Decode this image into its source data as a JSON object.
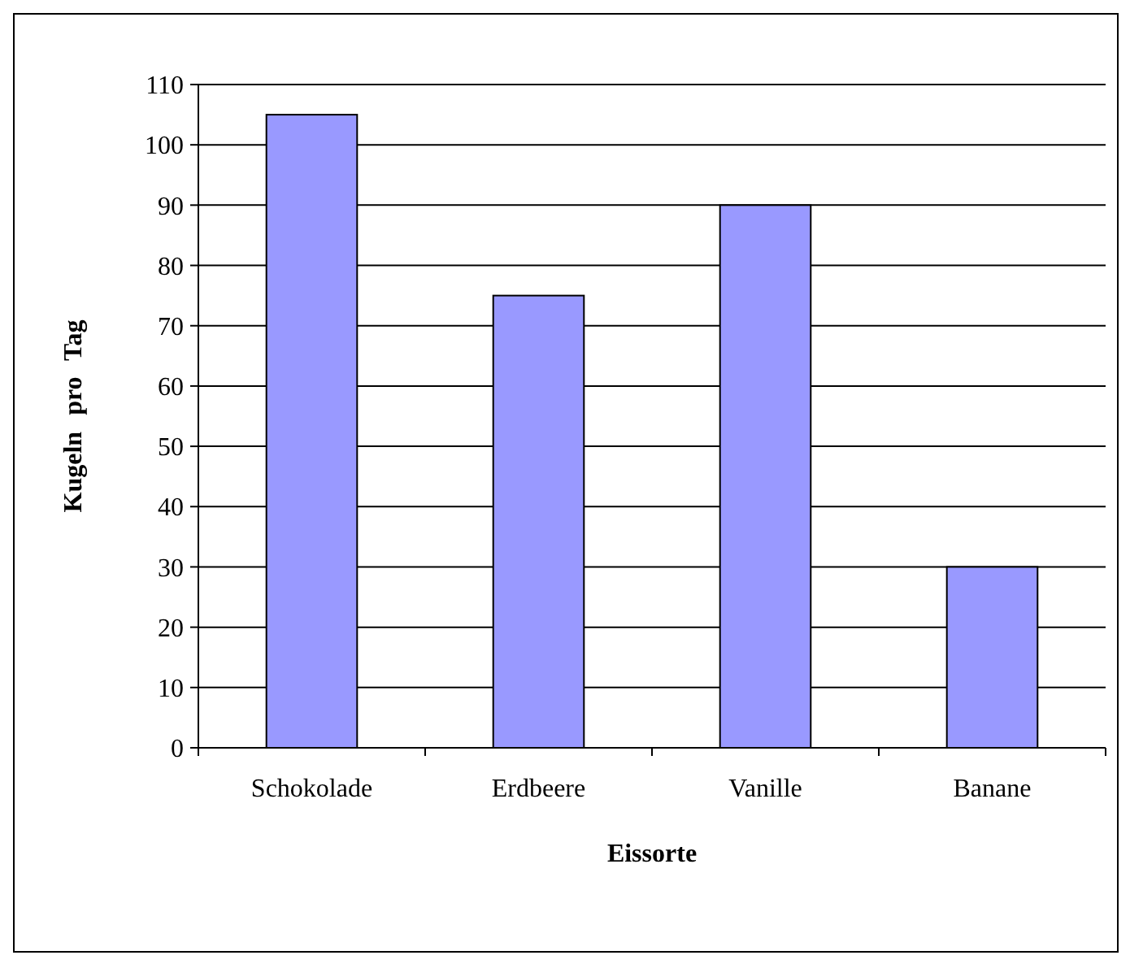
{
  "chart_data": {
    "type": "bar",
    "xlabel": "Eissorte",
    "ylabel": "Kugeln pro Tag",
    "categories": [
      "Schokolade",
      "Erdbeere",
      "Vanille",
      "Banane"
    ],
    "values": [
      105,
      75,
      90,
      30
    ],
    "color": "#9999ff",
    "ylim": [
      0,
      110
    ],
    "yticks": [
      0,
      10,
      20,
      30,
      40,
      50,
      60,
      70,
      80,
      90,
      100,
      110
    ],
    "grid": "y"
  }
}
